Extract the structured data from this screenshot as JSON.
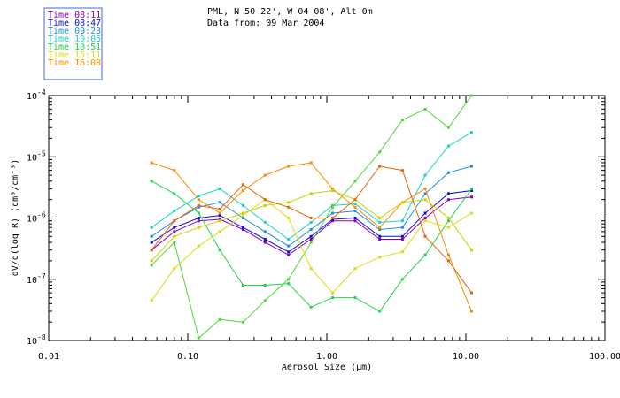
{
  "chart_data": {
    "type": "line",
    "title_lines": [
      "PML, N 50 22', W 04 08', Alt 0m",
      "Data from: 09 Mar 2004"
    ],
    "xlabel": "Aerosol Size (μm)",
    "ylabel": "dV/d(log R) (cm³/cm⁻³)",
    "xscale": "log",
    "yscale": "log",
    "xlim": [
      0.01,
      100
    ],
    "ylim": [
      1e-08,
      0.0001
    ],
    "x_ticks": [
      {
        "value": 0.01,
        "label": "0.01"
      },
      {
        "value": 0.1,
        "label": "0.10"
      },
      {
        "value": 1,
        "label": "1.00"
      },
      {
        "value": 10,
        "label": "10.00"
      },
      {
        "value": 100,
        "label": "100.00"
      }
    ],
    "y_ticks": [
      {
        "value": 1e-08,
        "mantissa": "10",
        "exp": "-8"
      },
      {
        "value": 1e-07,
        "mantissa": "10",
        "exp": "-7"
      },
      {
        "value": 1e-06,
        "mantissa": "10",
        "exp": "-6"
      },
      {
        "value": 1e-05,
        "mantissa": "10",
        "exp": "-5"
      },
      {
        "value": 0.0001,
        "mantissa": "10",
        "exp": "-4"
      }
    ],
    "legend_box_color": "#4169e1",
    "x": [
      0.055,
      0.08,
      0.12,
      0.17,
      0.25,
      0.36,
      0.53,
      0.77,
      1.1,
      1.6,
      2.4,
      3.5,
      5.1,
      7.5,
      11
    ],
    "series": [
      {
        "name": "Time 08:11",
        "color": "#8a00c0",
        "legend": true,
        "values": [
          3e-07,
          6e-07,
          9e-07,
          9.5e-07,
          6.5e-07,
          4e-07,
          2.5e-07,
          4.5e-07,
          9e-07,
          9e-07,
          4.5e-07,
          4.5e-07,
          1e-06,
          2e-06,
          2.2e-06
        ]
      },
      {
        "name": "Time 08:47",
        "color": "#1010d8",
        "legend": true,
        "values": [
          4e-07,
          7e-07,
          1e-06,
          1.1e-06,
          7e-07,
          4.5e-07,
          2.8e-07,
          5e-07,
          9.5e-07,
          1e-06,
          5e-07,
          5e-07,
          1.2e-06,
          2.5e-06,
          2.8e-06
        ]
      },
      {
        "name": "Time 09:23",
        "color": "#1e8fe0",
        "legend": true,
        "values": [
          5e-07,
          9e-07,
          1.5e-06,
          1.8e-06,
          1e-06,
          6e-07,
          3.5e-07,
          6.5e-07,
          1.2e-06,
          1.3e-06,
          6.5e-07,
          7e-07,
          2.5e-06,
          5.5e-06,
          7e-06
        ]
      },
      {
        "name": "Time 10:05",
        "color": "#18d2c8",
        "legend": true,
        "values": [
          7e-07,
          1.3e-06,
          2.3e-06,
          3e-06,
          1.6e-06,
          8.5e-07,
          4.5e-07,
          8.5e-07,
          1.6e-06,
          1.7e-06,
          8.5e-07,
          9e-07,
          5e-06,
          1.5e-05,
          2.5e-05
        ]
      },
      {
        "name": "Time 10:51",
        "color": "#22d44a",
        "legend": true,
        "values": [
          4e-06,
          2.5e-06,
          1.2e-06,
          3e-07,
          8e-08,
          8e-08,
          8.5e-08,
          3.5e-08,
          5e-08,
          5e-08,
          3e-08,
          1e-07,
          2.5e-07,
          9e-07,
          3e-06
        ]
      },
      {
        "name": "Time 10:51",
        "color": "#50d838",
        "legend": false,
        "values": [
          1.7e-07,
          4e-07,
          1.1e-08,
          2.2e-08,
          2e-08,
          4.5e-08,
          1e-07,
          4e-07,
          1.5e-06,
          4e-06,
          1.2e-05,
          4e-05,
          6e-05,
          3e-05,
          0.0001
        ]
      },
      {
        "name": "Time 15:11",
        "color": "#dcdc10",
        "legend": true,
        "values": [
          4.5e-08,
          1.5e-07,
          3.5e-07,
          6e-07,
          1.1e-06,
          2e-06,
          1e-06,
          1.5e-07,
          6e-08,
          1.5e-07,
          2.3e-07,
          2.8e-07,
          9e-07,
          7e-07,
          1.2e-06
        ]
      },
      {
        "name": "Time 16:08",
        "color": "#ff8c00",
        "legend": true,
        "values": [
          8e-06,
          6e-06,
          2e-06,
          1.2e-06,
          2.8e-06,
          5e-06,
          7e-06,
          8e-06,
          3e-06,
          1.5e-06,
          7e-07,
          1.8e-06,
          3e-06,
          2.5e-07,
          3e-08
        ]
      },
      {
        "name": "Time 15:11",
        "color": "#c8d400",
        "legend": false,
        "values": [
          2e-07,
          5e-07,
          7e-07,
          9e-07,
          1.2e-06,
          1.6e-06,
          1.8e-06,
          2.5e-06,
          2.8e-06,
          2e-06,
          1e-06,
          1.8e-06,
          2e-06,
          1e-06,
          3e-07
        ]
      },
      {
        "name": "Time 16:08",
        "color": "#e86400",
        "legend": false,
        "values": [
          3e-07,
          9e-07,
          1.6e-06,
          1.4e-06,
          3.5e-06,
          2e-06,
          1.5e-06,
          1e-06,
          1e-06,
          2e-06,
          7e-06,
          6e-06,
          5e-07,
          2e-07,
          6e-08
        ]
      }
    ]
  }
}
